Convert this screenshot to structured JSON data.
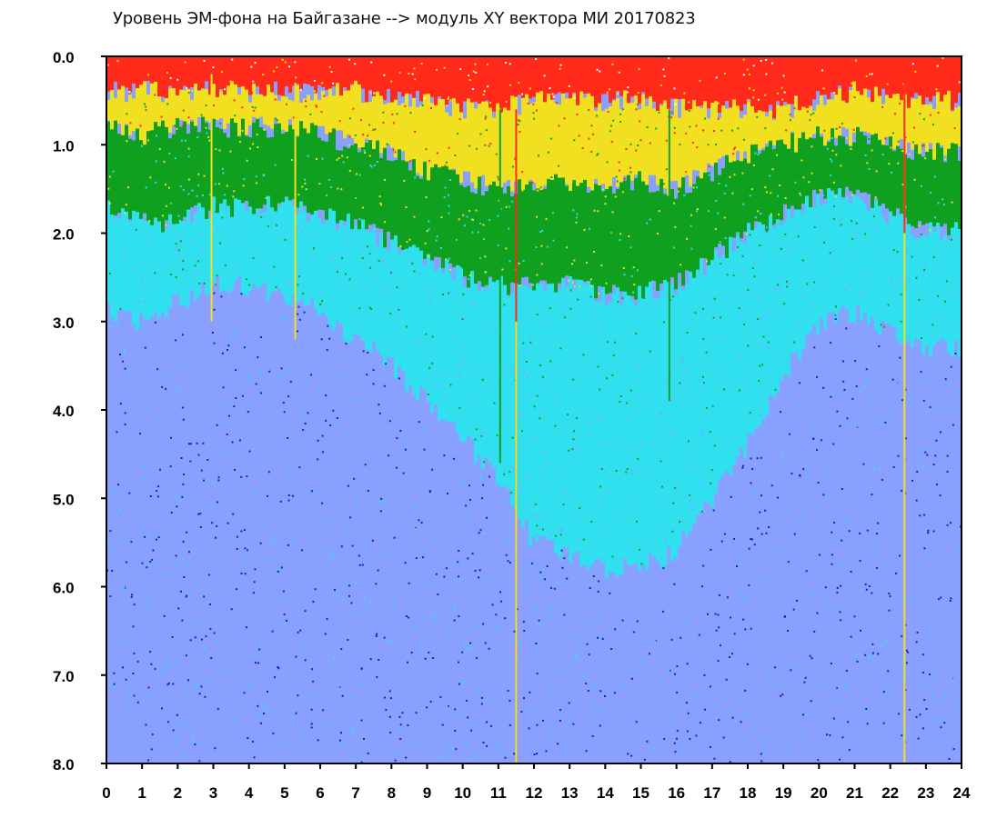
{
  "chart_data": {
    "type": "heatmap",
    "title": "Уровень ЭМ-фона на Байгазане  -->  модуль XY вектора МИ  20170823",
    "xlabel": "",
    "ylabel": "",
    "xlim": [
      0,
      24
    ],
    "ylim": [
      8.0,
      0.0
    ],
    "y_inverted": true,
    "x_ticks": [
      "0",
      "1",
      "2",
      "3",
      "4",
      "5",
      "6",
      "7",
      "8",
      "9",
      "10",
      "11",
      "12",
      "13",
      "14",
      "15",
      "16",
      "17",
      "18",
      "19",
      "20",
      "21",
      "22",
      "23",
      "24"
    ],
    "y_ticks": [
      "0.0",
      "1.0",
      "2.0",
      "3.0",
      "4.0",
      "5.0",
      "6.0",
      "7.0",
      "8.0"
    ],
    "grid": false,
    "legend": "none",
    "colorscale": [
      {
        "level": "highest",
        "color": "#ff2a1a"
      },
      {
        "level": "high",
        "color": "#f0e020"
      },
      {
        "level": "elevated",
        "color": "#10a020"
      },
      {
        "level": "medium",
        "color": "#30e0ee"
      },
      {
        "level": "low",
        "color": "#8aa0ff"
      },
      {
        "level": "lowest",
        "color": "#1020d0"
      }
    ],
    "hourly_profile": [
      {
        "hour": 0,
        "red_to": 0.4,
        "yellow_to": 0.8,
        "green_to": 1.7,
        "cyan_to": 2.9
      },
      {
        "hour": 1,
        "red_to": 0.4,
        "yellow_to": 0.9,
        "green_to": 1.9,
        "cyan_to": 3.0
      },
      {
        "hour": 2,
        "red_to": 0.4,
        "yellow_to": 0.8,
        "green_to": 1.9,
        "cyan_to": 2.8
      },
      {
        "hour": 3,
        "red_to": 0.4,
        "yellow_to": 0.8,
        "green_to": 1.7,
        "cyan_to": 2.6
      },
      {
        "hour": 4,
        "red_to": 0.4,
        "yellow_to": 0.8,
        "green_to": 1.7,
        "cyan_to": 2.6
      },
      {
        "hour": 5,
        "red_to": 0.4,
        "yellow_to": 0.8,
        "green_to": 1.7,
        "cyan_to": 2.7
      },
      {
        "hour": 6,
        "red_to": 0.4,
        "yellow_to": 0.9,
        "green_to": 1.8,
        "cyan_to": 2.9
      },
      {
        "hour": 7,
        "red_to": 0.4,
        "yellow_to": 1.0,
        "green_to": 1.9,
        "cyan_to": 3.2
      },
      {
        "hour": 8,
        "red_to": 0.5,
        "yellow_to": 1.1,
        "green_to": 2.1,
        "cyan_to": 3.5
      },
      {
        "hour": 9,
        "red_to": 0.5,
        "yellow_to": 1.3,
        "green_to": 2.3,
        "cyan_to": 3.9
      },
      {
        "hour": 10,
        "red_to": 0.6,
        "yellow_to": 1.4,
        "green_to": 2.5,
        "cyan_to": 4.3
      },
      {
        "hour": 11,
        "red_to": 0.6,
        "yellow_to": 1.5,
        "green_to": 2.6,
        "cyan_to": 4.8
      },
      {
        "hour": 12,
        "red_to": 0.5,
        "yellow_to": 1.5,
        "green_to": 2.6,
        "cyan_to": 5.5
      },
      {
        "hour": 13,
        "red_to": 0.5,
        "yellow_to": 1.4,
        "green_to": 2.6,
        "cyan_to": 5.6
      },
      {
        "hour": 14,
        "red_to": 0.5,
        "yellow_to": 1.5,
        "green_to": 2.7,
        "cyan_to": 5.8
      },
      {
        "hour": 15,
        "red_to": 0.5,
        "yellow_to": 1.4,
        "green_to": 2.7,
        "cyan_to": 5.8
      },
      {
        "hour": 16,
        "red_to": 0.6,
        "yellow_to": 1.5,
        "green_to": 2.6,
        "cyan_to": 5.6
      },
      {
        "hour": 17,
        "red_to": 0.6,
        "yellow_to": 1.3,
        "green_to": 2.3,
        "cyan_to": 5.0
      },
      {
        "hour": 18,
        "red_to": 0.6,
        "yellow_to": 1.1,
        "green_to": 2.0,
        "cyan_to": 4.4
      },
      {
        "hour": 19,
        "red_to": 0.6,
        "yellow_to": 1.0,
        "green_to": 1.8,
        "cyan_to": 3.6
      },
      {
        "hour": 20,
        "red_to": 0.5,
        "yellow_to": 0.9,
        "green_to": 1.6,
        "cyan_to": 3.0
      },
      {
        "hour": 21,
        "red_to": 0.4,
        "yellow_to": 0.9,
        "green_to": 1.6,
        "cyan_to": 2.9
      },
      {
        "hour": 22,
        "red_to": 0.5,
        "yellow_to": 1.0,
        "green_to": 1.8,
        "cyan_to": 3.1
      },
      {
        "hour": 23,
        "red_to": 0.5,
        "yellow_to": 1.1,
        "green_to": 2.0,
        "cyan_to": 3.3
      },
      {
        "hour": 24,
        "red_to": 0.5,
        "yellow_to": 1.1,
        "green_to": 2.0,
        "cyan_to": 3.3
      }
    ],
    "vertical_streaks": [
      {
        "hour": 2.95,
        "color": "#f0e020",
        "from": 0.2,
        "to": 3.0
      },
      {
        "hour": 5.3,
        "color": "#f0e020",
        "from": 0.3,
        "to": 3.2
      },
      {
        "hour": 11.05,
        "color": "#10a020",
        "from": 0.6,
        "to": 4.6
      },
      {
        "hour": 11.5,
        "color": "#ff2a1a",
        "from": 0.6,
        "to": 8.0
      },
      {
        "hour": 11.5,
        "color": "#f0e020",
        "from": 3.0,
        "to": 8.0
      },
      {
        "hour": 15.8,
        "color": "#10a020",
        "from": 0.6,
        "to": 3.9
      },
      {
        "hour": 22.4,
        "color": "#f0e020",
        "from": 0.3,
        "to": 8.0
      },
      {
        "hour": 22.4,
        "color": "#ff2a1a",
        "from": 0.3,
        "to": 2.0
      }
    ]
  }
}
